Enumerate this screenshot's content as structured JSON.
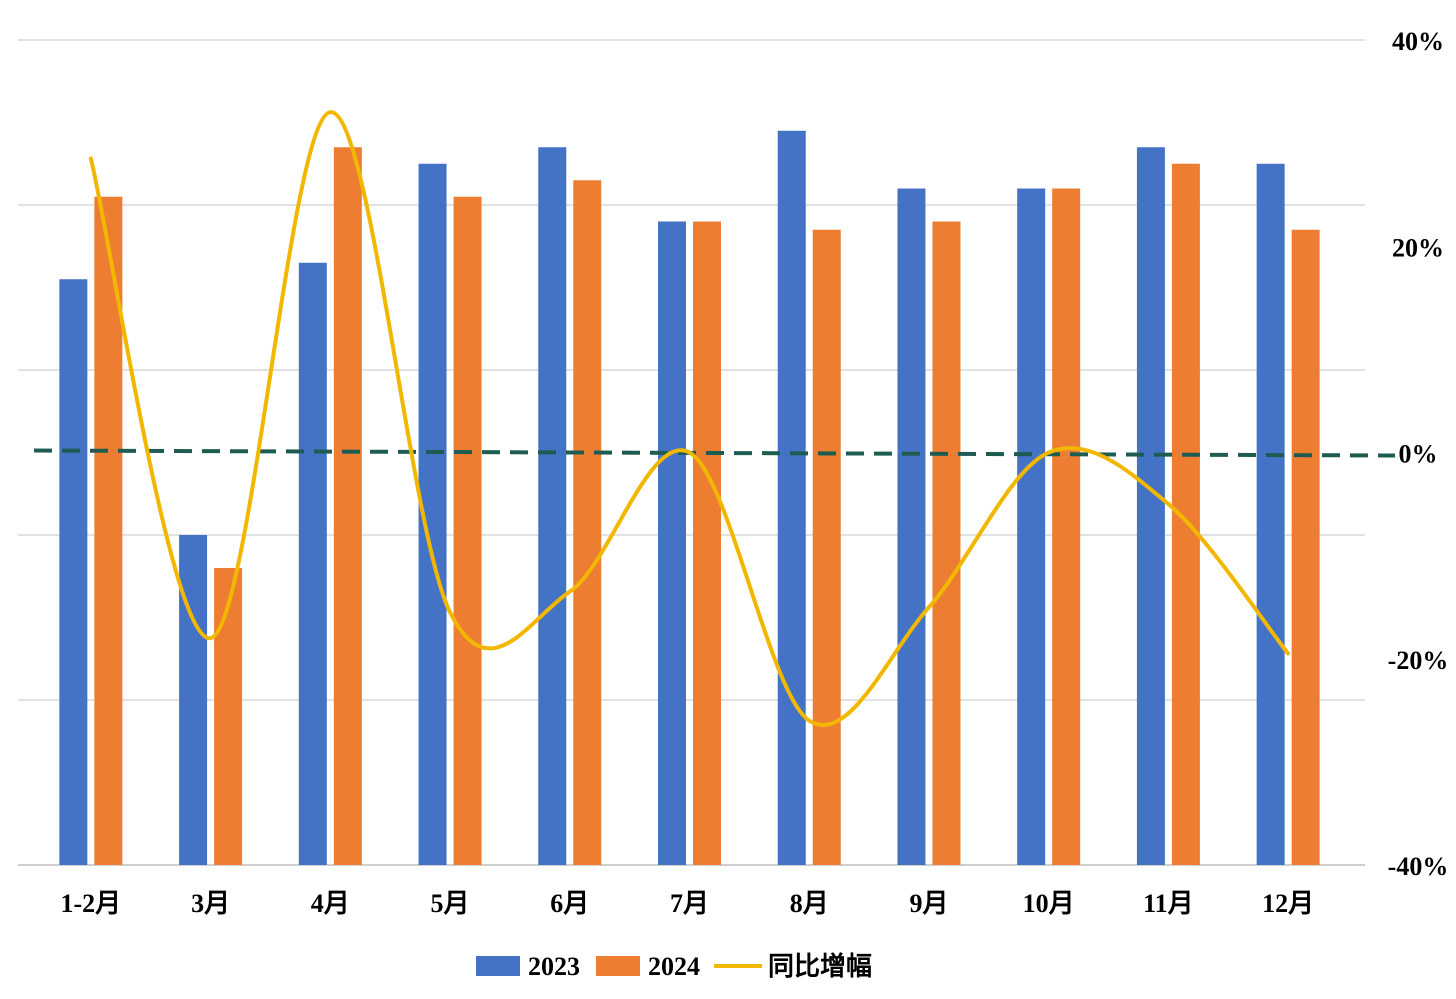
{
  "chart_data": {
    "type": "bar",
    "categories": [
      "1-2月",
      "3月",
      "4月",
      "5月",
      "6月",
      "7月",
      "8月",
      "9月",
      "10月",
      "11月",
      "12月"
    ],
    "series": [
      {
        "name": "2023",
        "type": "bar",
        "axis": "left",
        "color": "#4472C4",
        "values": [
          141,
          110,
          143,
          155,
          157,
          148,
          159,
          152,
          152,
          157,
          155
        ]
      },
      {
        "name": "2024",
        "type": "bar",
        "axis": "left",
        "color": "#ED7D31",
        "values": [
          151,
          106,
          157,
          151,
          153,
          148,
          147,
          148,
          152,
          155,
          147
        ]
      },
      {
        "name": "同比增幅",
        "type": "line",
        "smooth": true,
        "axis": "right",
        "color": "#F2B700",
        "values": [
          28.5,
          -18,
          33,
          -15.5,
          -13.5,
          0,
          -26,
          -15,
          0,
          -5,
          -19.5
        ]
      }
    ],
    "reference_line": {
      "axis": "right",
      "value": 0,
      "style": "dashed",
      "color": "#1E5C52"
    },
    "left_axis": {
      "ylim": [
        70,
        170
      ],
      "shown": false
    },
    "right_axis": {
      "ylim": [
        -40,
        40
      ],
      "ticks": [
        40,
        20,
        0,
        -20,
        -40
      ],
      "tick_labels": [
        "40%",
        "20%",
        "0%",
        "-20%",
        "-40%"
      ]
    },
    "grid": true,
    "legend": {
      "position": "bottom",
      "entries": [
        "2023",
        "2024",
        "同比增幅"
      ]
    },
    "title": "",
    "xlabel": "",
    "ylabel": ""
  }
}
